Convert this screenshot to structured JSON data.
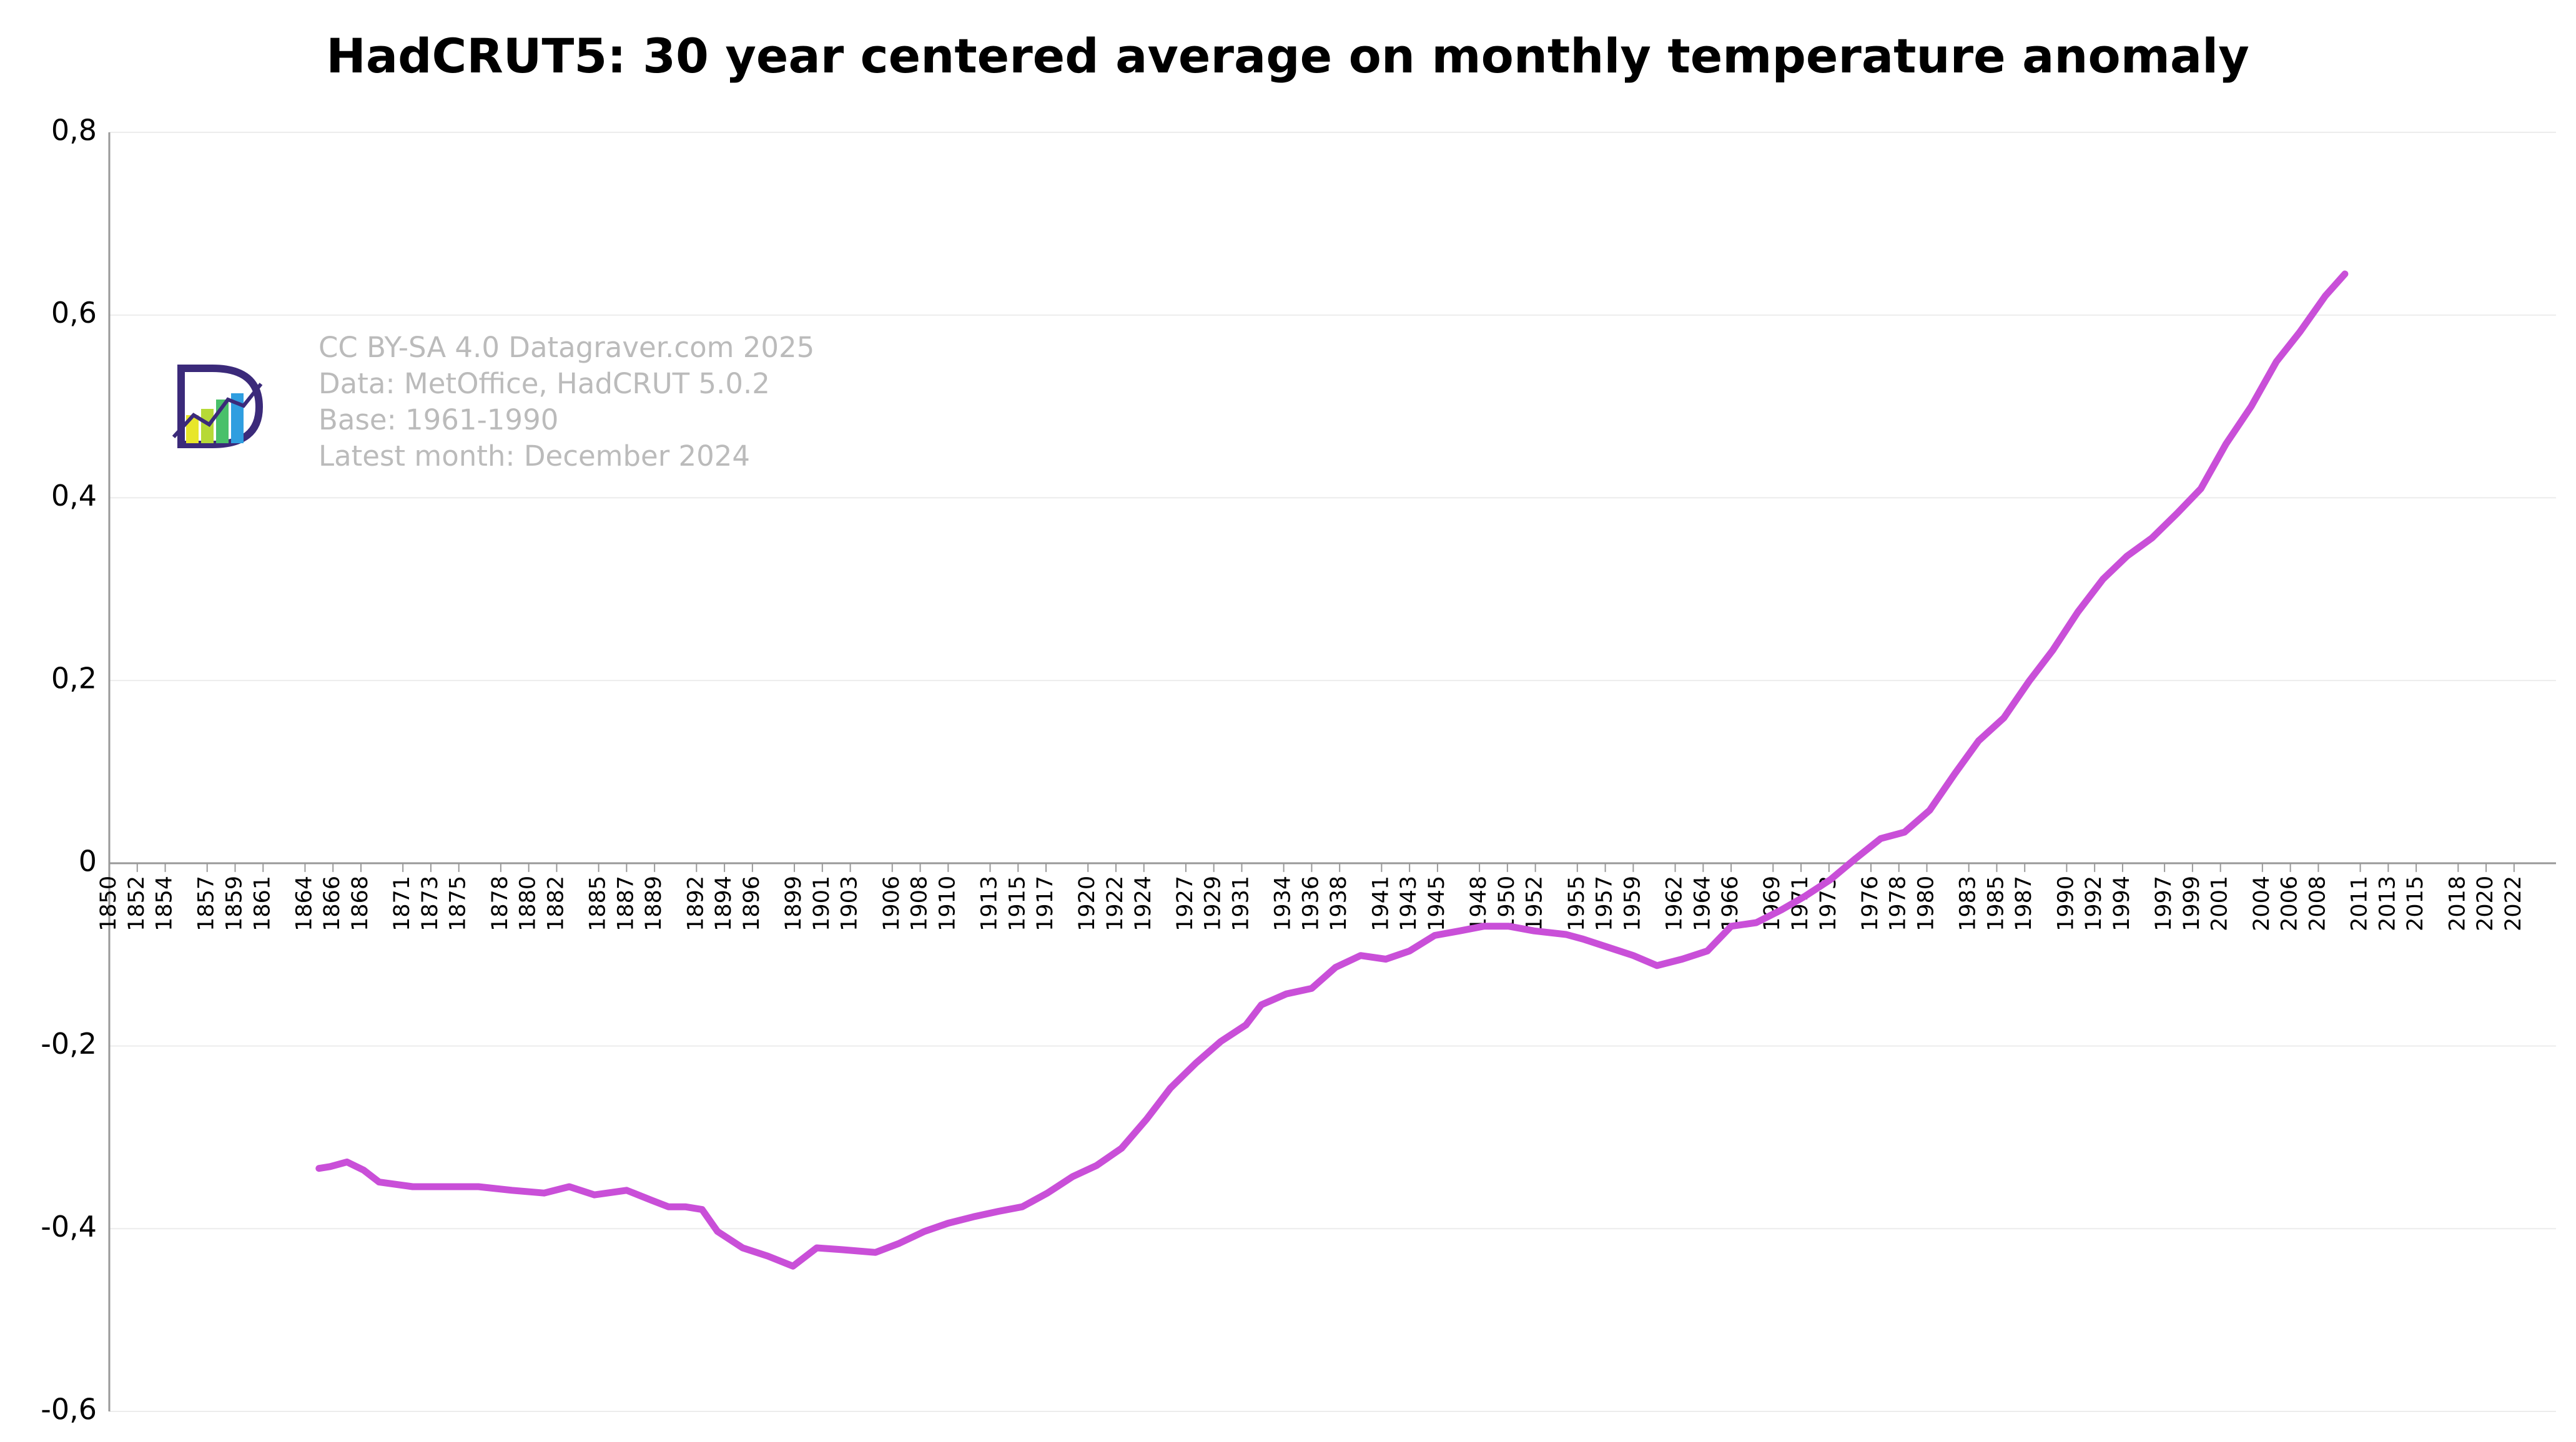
{
  "chart_data": {
    "type": "line",
    "title": "HadCRUT5: 30 year centered average on monthly temperature anomaly",
    "annotations": [
      "CC BY-SA 4.0 Datagraver.com 2025",
      "Data: MetOffice, HadCRUT 5.0.2",
      "Base: 1961-1990",
      "Latest month: December 2024"
    ],
    "x": [
      1865.0,
      1865.8,
      1867.0,
      1868.2,
      1869.3,
      1871.7,
      1874.1,
      1876.4,
      1878.8,
      1881.1,
      1882.9,
      1884.7,
      1887.0,
      1888.8,
      1890.0,
      1891.2,
      1892.4,
      1893.5,
      1895.3,
      1897.1,
      1898.9,
      1900.6,
      1902.4,
      1904.8,
      1906.5,
      1908.3,
      1910.0,
      1911.8,
      1913.6,
      1915.3,
      1917.1,
      1918.9,
      1920.6,
      1922.4,
      1924.2,
      1925.9,
      1927.7,
      1929.5,
      1931.3,
      1932.4,
      1934.2,
      1936.0,
      1937.7,
      1939.5,
      1941.3,
      1943.0,
      1944.8,
      1946.6,
      1948.3,
      1950.1,
      1951.9,
      1954.2,
      1955.4,
      1957.2,
      1959.0,
      1960.7,
      1962.5,
      1964.3,
      1966.0,
      1967.8,
      1969.6,
      1971.3,
      1973.1,
      1974.9,
      1976.7,
      1978.4,
      1980.2,
      1982.0,
      1983.7,
      1985.5,
      1987.3,
      1989.0,
      1990.8,
      1992.6,
      1994.3,
      1996.1,
      1997.9,
      1999.6,
      2001.4,
      2003.2,
      2005.0,
      2006.7,
      2008.5,
      2009.9
    ],
    "series": [
      {
        "color": "#c94fd8",
        "values": [
          -0.334,
          -0.332,
          -0.327,
          -0.336,
          -0.349,
          -0.354,
          -0.354,
          -0.354,
          -0.358,
          -0.361,
          -0.354,
          -0.363,
          -0.358,
          -0.369,
          -0.376,
          -0.376,
          -0.379,
          -0.403,
          -0.421,
          -0.43,
          -0.441,
          -0.421,
          -0.423,
          -0.426,
          -0.416,
          -0.403,
          -0.394,
          -0.387,
          -0.381,
          -0.376,
          -0.361,
          -0.343,
          -0.331,
          -0.312,
          -0.28,
          -0.246,
          -0.219,
          -0.195,
          -0.177,
          -0.155,
          -0.143,
          -0.137,
          -0.114,
          -0.101,
          -0.105,
          -0.096,
          -0.079,
          -0.074,
          -0.069,
          -0.069,
          -0.074,
          -0.078,
          -0.083,
          -0.092,
          -0.101,
          -0.112,
          -0.105,
          -0.096,
          -0.069,
          -0.065,
          -0.051,
          -0.036,
          -0.018,
          0.005,
          0.027,
          0.034,
          0.058,
          0.098,
          0.134,
          0.159,
          0.199,
          0.233,
          0.275,
          0.311,
          0.336,
          0.356,
          0.383,
          0.41,
          0.459,
          0.5,
          0.549,
          0.582,
          0.621,
          0.645
        ]
      }
    ],
    "xlim": [
      1850,
      2025
    ],
    "xticks": [
      1850,
      1852,
      1854,
      1857,
      1859,
      1861,
      1864,
      1866,
      1868,
      1871,
      1873,
      1875,
      1878,
      1880,
      1882,
      1885,
      1887,
      1889,
      1892,
      1894,
      1896,
      1899,
      1901,
      1903,
      1906,
      1908,
      1910,
      1913,
      1915,
      1917,
      1920,
      1922,
      1924,
      1927,
      1929,
      1931,
      1934,
      1936,
      1938,
      1941,
      1943,
      1945,
      1948,
      1950,
      1952,
      1955,
      1957,
      1959,
      1962,
      1964,
      1966,
      1969,
      1971,
      1973,
      1976,
      1978,
      1980,
      1983,
      1985,
      1987,
      1990,
      1992,
      1994,
      1997,
      1999,
      2001,
      2004,
      2006,
      2008,
      2011,
      2013,
      2015,
      2018,
      2020,
      2022
    ],
    "ylim": [
      -0.6,
      0.8
    ],
    "yticks": [
      {
        "value": -0.6,
        "label": "-0,6"
      },
      {
        "value": -0.4,
        "label": "-0,4"
      },
      {
        "value": -0.2,
        "label": "-0,2"
      },
      0,
      {
        "value": 0.2,
        "label": "0,2"
      },
      {
        "value": 0.4,
        "label": "0,4"
      },
      {
        "value": 0.6,
        "label": "0,6"
      },
      {
        "value": 0.8,
        "label": "0,8"
      }
    ],
    "grid": true
  }
}
